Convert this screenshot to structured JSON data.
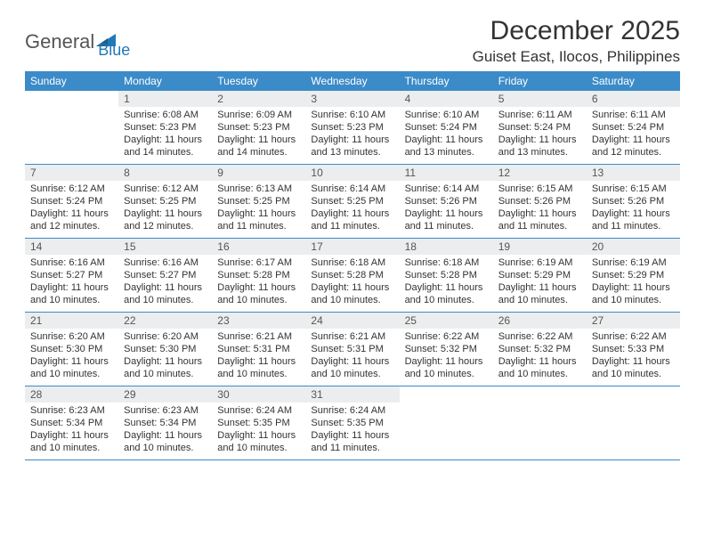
{
  "logo": {
    "text1": "General",
    "text2": "Blue"
  },
  "title": "December 2025",
  "location": "Guiset East, Ilocos, Philippines",
  "colors": {
    "header_bg": "#3b8bc9",
    "header_text": "#ffffff",
    "daynum_bg": "#ecedee",
    "row_border": "#3b8bc9",
    "body_text": "#333333",
    "logo_gray": "#555555",
    "logo_blue": "#2179b8",
    "page_bg": "#ffffff"
  },
  "fonts": {
    "title_size_pt": 22,
    "location_size_pt": 13,
    "header_size_pt": 9,
    "body_size_pt": 8
  },
  "day_names": [
    "Sunday",
    "Monday",
    "Tuesday",
    "Wednesday",
    "Thursday",
    "Friday",
    "Saturday"
  ],
  "weeks": [
    [
      {
        "n": "",
        "sr": "",
        "ss": "",
        "dl": "",
        "empty": true
      },
      {
        "n": "1",
        "sr": "Sunrise: 6:08 AM",
        "ss": "Sunset: 5:23 PM",
        "dl": "Daylight: 11 hours and 14 minutes."
      },
      {
        "n": "2",
        "sr": "Sunrise: 6:09 AM",
        "ss": "Sunset: 5:23 PM",
        "dl": "Daylight: 11 hours and 14 minutes."
      },
      {
        "n": "3",
        "sr": "Sunrise: 6:10 AM",
        "ss": "Sunset: 5:23 PM",
        "dl": "Daylight: 11 hours and 13 minutes."
      },
      {
        "n": "4",
        "sr": "Sunrise: 6:10 AM",
        "ss": "Sunset: 5:24 PM",
        "dl": "Daylight: 11 hours and 13 minutes."
      },
      {
        "n": "5",
        "sr": "Sunrise: 6:11 AM",
        "ss": "Sunset: 5:24 PM",
        "dl": "Daylight: 11 hours and 13 minutes."
      },
      {
        "n": "6",
        "sr": "Sunrise: 6:11 AM",
        "ss": "Sunset: 5:24 PM",
        "dl": "Daylight: 11 hours and 12 minutes."
      }
    ],
    [
      {
        "n": "7",
        "sr": "Sunrise: 6:12 AM",
        "ss": "Sunset: 5:24 PM",
        "dl": "Daylight: 11 hours and 12 minutes."
      },
      {
        "n": "8",
        "sr": "Sunrise: 6:12 AM",
        "ss": "Sunset: 5:25 PM",
        "dl": "Daylight: 11 hours and 12 minutes."
      },
      {
        "n": "9",
        "sr": "Sunrise: 6:13 AM",
        "ss": "Sunset: 5:25 PM",
        "dl": "Daylight: 11 hours and 11 minutes."
      },
      {
        "n": "10",
        "sr": "Sunrise: 6:14 AM",
        "ss": "Sunset: 5:25 PM",
        "dl": "Daylight: 11 hours and 11 minutes."
      },
      {
        "n": "11",
        "sr": "Sunrise: 6:14 AM",
        "ss": "Sunset: 5:26 PM",
        "dl": "Daylight: 11 hours and 11 minutes."
      },
      {
        "n": "12",
        "sr": "Sunrise: 6:15 AM",
        "ss": "Sunset: 5:26 PM",
        "dl": "Daylight: 11 hours and 11 minutes."
      },
      {
        "n": "13",
        "sr": "Sunrise: 6:15 AM",
        "ss": "Sunset: 5:26 PM",
        "dl": "Daylight: 11 hours and 11 minutes."
      }
    ],
    [
      {
        "n": "14",
        "sr": "Sunrise: 6:16 AM",
        "ss": "Sunset: 5:27 PM",
        "dl": "Daylight: 11 hours and 10 minutes."
      },
      {
        "n": "15",
        "sr": "Sunrise: 6:16 AM",
        "ss": "Sunset: 5:27 PM",
        "dl": "Daylight: 11 hours and 10 minutes."
      },
      {
        "n": "16",
        "sr": "Sunrise: 6:17 AM",
        "ss": "Sunset: 5:28 PM",
        "dl": "Daylight: 11 hours and 10 minutes."
      },
      {
        "n": "17",
        "sr": "Sunrise: 6:18 AM",
        "ss": "Sunset: 5:28 PM",
        "dl": "Daylight: 11 hours and 10 minutes."
      },
      {
        "n": "18",
        "sr": "Sunrise: 6:18 AM",
        "ss": "Sunset: 5:28 PM",
        "dl": "Daylight: 11 hours and 10 minutes."
      },
      {
        "n": "19",
        "sr": "Sunrise: 6:19 AM",
        "ss": "Sunset: 5:29 PM",
        "dl": "Daylight: 11 hours and 10 minutes."
      },
      {
        "n": "20",
        "sr": "Sunrise: 6:19 AM",
        "ss": "Sunset: 5:29 PM",
        "dl": "Daylight: 11 hours and 10 minutes."
      }
    ],
    [
      {
        "n": "21",
        "sr": "Sunrise: 6:20 AM",
        "ss": "Sunset: 5:30 PM",
        "dl": "Daylight: 11 hours and 10 minutes."
      },
      {
        "n": "22",
        "sr": "Sunrise: 6:20 AM",
        "ss": "Sunset: 5:30 PM",
        "dl": "Daylight: 11 hours and 10 minutes."
      },
      {
        "n": "23",
        "sr": "Sunrise: 6:21 AM",
        "ss": "Sunset: 5:31 PM",
        "dl": "Daylight: 11 hours and 10 minutes."
      },
      {
        "n": "24",
        "sr": "Sunrise: 6:21 AM",
        "ss": "Sunset: 5:31 PM",
        "dl": "Daylight: 11 hours and 10 minutes."
      },
      {
        "n": "25",
        "sr": "Sunrise: 6:22 AM",
        "ss": "Sunset: 5:32 PM",
        "dl": "Daylight: 11 hours and 10 minutes."
      },
      {
        "n": "26",
        "sr": "Sunrise: 6:22 AM",
        "ss": "Sunset: 5:32 PM",
        "dl": "Daylight: 11 hours and 10 minutes."
      },
      {
        "n": "27",
        "sr": "Sunrise: 6:22 AM",
        "ss": "Sunset: 5:33 PM",
        "dl": "Daylight: 11 hours and 10 minutes."
      }
    ],
    [
      {
        "n": "28",
        "sr": "Sunrise: 6:23 AM",
        "ss": "Sunset: 5:34 PM",
        "dl": "Daylight: 11 hours and 10 minutes."
      },
      {
        "n": "29",
        "sr": "Sunrise: 6:23 AM",
        "ss": "Sunset: 5:34 PM",
        "dl": "Daylight: 11 hours and 10 minutes."
      },
      {
        "n": "30",
        "sr": "Sunrise: 6:24 AM",
        "ss": "Sunset: 5:35 PM",
        "dl": "Daylight: 11 hours and 10 minutes."
      },
      {
        "n": "31",
        "sr": "Sunrise: 6:24 AM",
        "ss": "Sunset: 5:35 PM",
        "dl": "Daylight: 11 hours and 11 minutes."
      },
      {
        "n": "",
        "sr": "",
        "ss": "",
        "dl": "",
        "empty": true
      },
      {
        "n": "",
        "sr": "",
        "ss": "",
        "dl": "",
        "empty": true
      },
      {
        "n": "",
        "sr": "",
        "ss": "",
        "dl": "",
        "empty": true
      }
    ]
  ]
}
